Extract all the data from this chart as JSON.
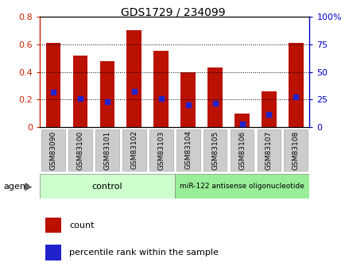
{
  "title": "GDS1729 / 234099",
  "samples": [
    "GSM83090",
    "GSM83100",
    "GSM83101",
    "GSM83102",
    "GSM83103",
    "GSM83104",
    "GSM83105",
    "GSM83106",
    "GSM83107",
    "GSM83108"
  ],
  "counts": [
    0.61,
    0.52,
    0.48,
    0.7,
    0.55,
    0.4,
    0.43,
    0.1,
    0.26,
    0.61
  ],
  "percentile_ranks": [
    0.32,
    0.26,
    0.235,
    0.325,
    0.26,
    0.205,
    0.215,
    0.035,
    0.115,
    0.275
  ],
  "bar_color": "#bb1100",
  "dot_color": "#2222cc",
  "ylim_left": [
    0,
    0.8
  ],
  "ylim_right": [
    0,
    1.0
  ],
  "yticks_left": [
    0,
    0.2,
    0.4,
    0.6,
    0.8
  ],
  "ytick_labels_left": [
    "0",
    "0.2",
    "0.4",
    "0.6",
    "0.8"
  ],
  "ytick_labels_right": [
    "0",
    "25",
    "50",
    "75",
    "100%"
  ],
  "yticks_right": [
    0,
    0.25,
    0.5,
    0.75,
    1.0
  ],
  "grid_color": "#000000",
  "control_color": "#ccffcc",
  "mir_color": "#99ee99",
  "title_color": "#000000",
  "left_axis_color": "#cc2200",
  "right_axis_color": "#0000cc",
  "bar_width": 0.55,
  "bg_color": "#ffffff",
  "plot_bg_color": "#ffffff",
  "xtick_bg_color": "#cccccc",
  "xtick_border_color": "#aaaaaa",
  "legend_count_color": "#bb1100",
  "legend_pct_color": "#2222cc"
}
